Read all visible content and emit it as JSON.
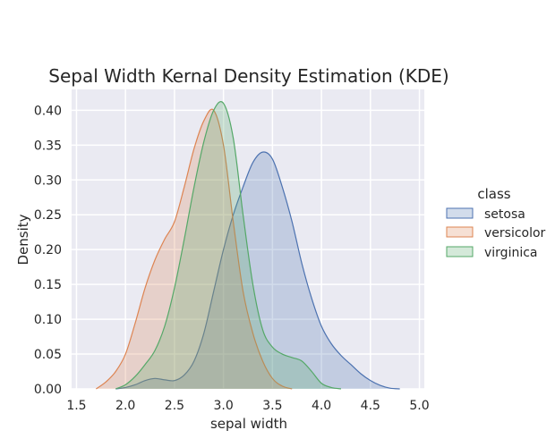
{
  "chart_data": {
    "type": "area",
    "title": "Sepal Width Kernal Density Estimation (KDE)",
    "xlabel": "sepal width",
    "ylabel": "Density",
    "xlim": [
      1.45,
      5.05
    ],
    "ylim": [
      0.0,
      0.43
    ],
    "grid": true,
    "x_ticks": [
      1.5,
      2.0,
      2.5,
      3.0,
      3.5,
      4.0,
      4.5,
      5.0
    ],
    "x_tick_labels": [
      "1.5",
      "2.0",
      "2.5",
      "3.0",
      "3.5",
      "4.0",
      "4.5",
      "5.0"
    ],
    "y_ticks": [
      0.0,
      0.05,
      0.1,
      0.15,
      0.2,
      0.25,
      0.3,
      0.35,
      0.4
    ],
    "y_tick_labels": [
      "0.00",
      "0.05",
      "0.10",
      "0.15",
      "0.20",
      "0.25",
      "0.30",
      "0.35",
      "0.40"
    ],
    "legend": {
      "title": "class",
      "placement": "right-outside"
    },
    "series": [
      {
        "name": "setosa",
        "color": "#4c72b0",
        "x": [
          1.9,
          2.0,
          2.1,
          2.2,
          2.3,
          2.4,
          2.5,
          2.6,
          2.7,
          2.8,
          2.9,
          3.0,
          3.1,
          3.2,
          3.3,
          3.4,
          3.5,
          3.6,
          3.7,
          3.8,
          3.9,
          4.0,
          4.1,
          4.2,
          4.3,
          4.4,
          4.5,
          4.6,
          4.7,
          4.8
        ],
        "values": [
          0.0,
          0.002,
          0.006,
          0.012,
          0.015,
          0.013,
          0.012,
          0.02,
          0.04,
          0.08,
          0.14,
          0.2,
          0.25,
          0.29,
          0.325,
          0.34,
          0.33,
          0.29,
          0.24,
          0.18,
          0.13,
          0.09,
          0.065,
          0.048,
          0.035,
          0.022,
          0.012,
          0.005,
          0.001,
          0.0
        ]
      },
      {
        "name": "versicolor",
        "color": "#dd8452",
        "x": [
          1.7,
          1.8,
          1.9,
          2.0,
          2.1,
          2.2,
          2.3,
          2.4,
          2.5,
          2.6,
          2.7,
          2.8,
          2.9,
          3.0,
          3.1,
          3.2,
          3.3,
          3.4,
          3.5,
          3.6,
          3.7
        ],
        "values": [
          0.0,
          0.01,
          0.025,
          0.05,
          0.095,
          0.145,
          0.185,
          0.215,
          0.24,
          0.29,
          0.345,
          0.385,
          0.4,
          0.35,
          0.24,
          0.14,
          0.08,
          0.04,
          0.015,
          0.004,
          0.0
        ]
      },
      {
        "name": "virginica",
        "color": "#55a868",
        "x": [
          1.9,
          2.0,
          2.1,
          2.2,
          2.3,
          2.4,
          2.5,
          2.6,
          2.7,
          2.8,
          2.9,
          3.0,
          3.1,
          3.2,
          3.3,
          3.4,
          3.5,
          3.6,
          3.7,
          3.8,
          3.9,
          4.0,
          4.1,
          4.2
        ],
        "values": [
          0.0,
          0.006,
          0.018,
          0.035,
          0.055,
          0.09,
          0.145,
          0.215,
          0.29,
          0.355,
          0.4,
          0.41,
          0.36,
          0.25,
          0.15,
          0.085,
          0.06,
          0.05,
          0.045,
          0.04,
          0.025,
          0.008,
          0.002,
          0.0
        ]
      }
    ]
  }
}
